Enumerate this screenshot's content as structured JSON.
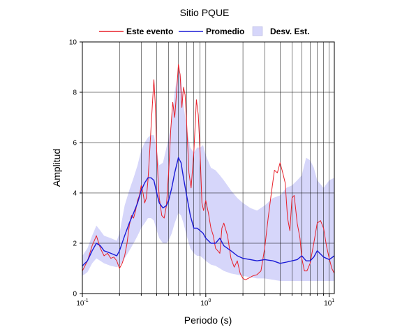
{
  "chart_data": {
    "type": "line",
    "title": "Sitio PQUE",
    "xlabel": "Periodo (s)",
    "ylabel": "Amplitud",
    "x_scale": "log",
    "xlim": [
      0.1,
      11
    ],
    "ylim": [
      0,
      10
    ],
    "x_ticks": [
      {
        "value": 0.1,
        "base": "10",
        "exp": "-1"
      },
      {
        "value": 1,
        "base": "10",
        "exp": "0"
      },
      {
        "value": 10,
        "base": "10",
        "exp": "1"
      }
    ],
    "y_ticks": [
      0,
      2,
      4,
      6,
      8,
      10
    ],
    "grid": true,
    "legend_position": "top",
    "colors": {
      "event": "#e8202a",
      "mean": "#1a1ad6",
      "band": "#d6d6fa"
    },
    "series": [
      {
        "name": "Este evento",
        "x": [
          0.1,
          0.105,
          0.11,
          0.115,
          0.12,
          0.125,
          0.13,
          0.14,
          0.15,
          0.16,
          0.17,
          0.18,
          0.19,
          0.2,
          0.21,
          0.22,
          0.23,
          0.24,
          0.25,
          0.26,
          0.27,
          0.28,
          0.29,
          0.3,
          0.31,
          0.32,
          0.33,
          0.34,
          0.35,
          0.36,
          0.37,
          0.38,
          0.39,
          0.4,
          0.41,
          0.42,
          0.44,
          0.46,
          0.48,
          0.5,
          0.52,
          0.54,
          0.56,
          0.58,
          0.6,
          0.62,
          0.64,
          0.66,
          0.68,
          0.7,
          0.73,
          0.76,
          0.8,
          0.84,
          0.87,
          0.9,
          0.93,
          0.96,
          1.0,
          1.05,
          1.1,
          1.15,
          1.2,
          1.25,
          1.3,
          1.35,
          1.4,
          1.5,
          1.6,
          1.7,
          1.8,
          1.9,
          2.0,
          2.1,
          2.2,
          2.4,
          2.6,
          2.8,
          3.0,
          3.2,
          3.4,
          3.6,
          3.8,
          4.0,
          4.2,
          4.4,
          4.6,
          4.8,
          5.0,
          5.2,
          5.5,
          5.8,
          6.0,
          6.3,
          6.6,
          7.0,
          7.5,
          8.0,
          8.5,
          9.0,
          9.5,
          10.0,
          10.5,
          11.0
        ],
        "values": [
          0.9,
          1.1,
          1.3,
          1.6,
          1.9,
          2.1,
          2.3,
          1.8,
          1.5,
          1.6,
          1.4,
          1.45,
          1.3,
          1.0,
          1.2,
          1.5,
          2.0,
          2.7,
          3.1,
          3.0,
          3.3,
          3.7,
          3.9,
          4.3,
          4.0,
          3.6,
          3.8,
          4.5,
          5.5,
          6.6,
          7.6,
          8.5,
          7.5,
          5.7,
          4.6,
          3.8,
          3.1,
          3.0,
          3.5,
          4.8,
          6.5,
          7.6,
          7.0,
          8.0,
          9.1,
          8.7,
          7.4,
          8.2,
          7.9,
          6.8,
          4.8,
          4.2,
          5.6,
          7.7,
          7.1,
          5.6,
          3.6,
          3.3,
          3.7,
          3.2,
          2.6,
          2.3,
          1.8,
          1.7,
          1.6,
          2.6,
          2.8,
          2.3,
          1.4,
          1.05,
          1.3,
          0.8,
          0.6,
          0.55,
          0.6,
          0.7,
          0.75,
          0.9,
          1.8,
          3.0,
          4.0,
          4.9,
          4.8,
          5.2,
          4.8,
          4.4,
          3.0,
          2.5,
          3.8,
          3.9,
          2.8,
          2.2,
          1.4,
          0.9,
          0.9,
          1.2,
          2.0,
          2.8,
          2.9,
          2.6,
          1.9,
          1.4,
          1.0,
          0.8
        ]
      },
      {
        "name": "Promedio",
        "x": [
          0.1,
          0.11,
          0.12,
          0.13,
          0.14,
          0.15,
          0.17,
          0.19,
          0.2,
          0.22,
          0.24,
          0.26,
          0.28,
          0.3,
          0.32,
          0.34,
          0.36,
          0.38,
          0.4,
          0.42,
          0.45,
          0.48,
          0.5,
          0.53,
          0.56,
          0.6,
          0.63,
          0.66,
          0.7,
          0.75,
          0.8,
          0.85,
          0.9,
          0.95,
          1.0,
          1.1,
          1.2,
          1.3,
          1.4,
          1.6,
          1.8,
          2.0,
          2.3,
          2.6,
          3.0,
          3.5,
          4.0,
          4.5,
          5.0,
          5.5,
          6.0,
          6.5,
          7.0,
          7.5,
          8.0,
          9.0,
          10.0,
          11.0
        ],
        "values": [
          1.1,
          1.3,
          1.7,
          2.0,
          1.9,
          1.7,
          1.6,
          1.5,
          1.7,
          2.3,
          2.8,
          3.2,
          3.6,
          4.1,
          4.4,
          4.6,
          4.6,
          4.5,
          4.0,
          3.6,
          3.4,
          3.5,
          3.7,
          4.2,
          4.8,
          5.4,
          5.2,
          4.6,
          3.9,
          3.1,
          2.6,
          2.6,
          2.5,
          2.4,
          2.2,
          2.0,
          2.0,
          2.2,
          1.9,
          1.7,
          1.5,
          1.4,
          1.35,
          1.3,
          1.35,
          1.3,
          1.2,
          1.25,
          1.3,
          1.35,
          1.5,
          1.3,
          1.3,
          1.45,
          1.7,
          1.45,
          1.35,
          1.5
        ]
      },
      {
        "name": "Desv. Est.",
        "x": [
          0.1,
          0.11,
          0.12,
          0.13,
          0.14,
          0.15,
          0.17,
          0.19,
          0.2,
          0.22,
          0.24,
          0.26,
          0.28,
          0.3,
          0.32,
          0.34,
          0.36,
          0.38,
          0.4,
          0.42,
          0.45,
          0.48,
          0.5,
          0.53,
          0.56,
          0.6,
          0.63,
          0.66,
          0.7,
          0.75,
          0.8,
          0.85,
          0.9,
          0.95,
          1.0,
          1.1,
          1.2,
          1.3,
          1.4,
          1.6,
          1.8,
          2.0,
          2.3,
          2.6,
          3.0,
          3.5,
          4.0,
          4.5,
          5.0,
          5.5,
          6.0,
          6.5,
          7.0,
          7.5,
          8.0,
          9.0,
          10.0,
          11.0
        ],
        "upper": [
          1.5,
          1.8,
          2.3,
          2.7,
          2.5,
          2.3,
          2.2,
          2.1,
          2.4,
          3.5,
          4.1,
          4.6,
          5.1,
          5.7,
          6.0,
          6.2,
          6.3,
          6.3,
          5.7,
          5.1,
          5.2,
          5.8,
          6.2,
          6.9,
          8.0,
          8.9,
          8.6,
          7.5,
          6.6,
          5.8,
          5.6,
          5.8,
          5.8,
          5.9,
          5.5,
          5.0,
          4.9,
          4.7,
          4.5,
          4.1,
          3.8,
          3.6,
          3.4,
          3.3,
          3.5,
          3.8,
          3.9,
          4.2,
          4.3,
          4.5,
          4.7,
          5.4,
          5.3,
          5.0,
          4.5,
          4.2,
          4.5,
          4.6
        ],
        "lower": [
          0.7,
          0.85,
          1.2,
          1.4,
          1.3,
          1.2,
          1.1,
          1.05,
          1.1,
          1.4,
          1.7,
          2.0,
          2.3,
          2.6,
          2.8,
          3.0,
          3.0,
          2.9,
          2.5,
          2.2,
          2.0,
          2.0,
          2.1,
          2.4,
          2.8,
          3.2,
          3.1,
          2.8,
          2.3,
          1.8,
          1.6,
          1.5,
          1.5,
          1.4,
          1.3,
          1.15,
          1.1,
          1.0,
          0.9,
          0.8,
          0.75,
          0.7,
          0.65,
          0.6,
          0.6,
          0.55,
          0.5,
          0.5,
          0.5,
          0.5,
          0.5,
          0.5,
          0.5,
          0.5,
          0.5,
          0.5,
          0.5,
          0.5
        ]
      }
    ]
  }
}
